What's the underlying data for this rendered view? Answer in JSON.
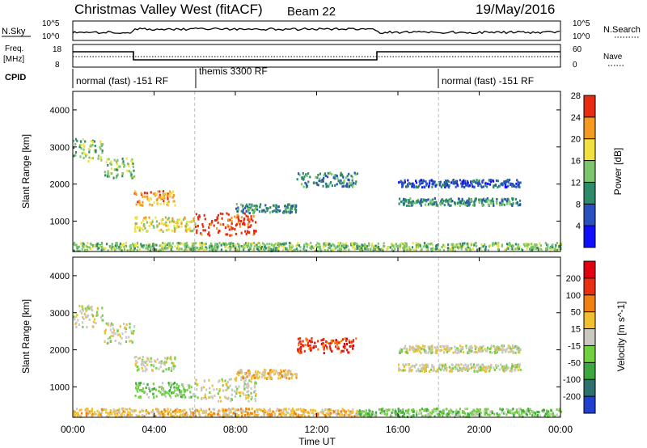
{
  "header": {
    "title": "Christmas Valley West (fitACF)",
    "beam": "Beam 22",
    "date": "19/May/2016"
  },
  "nsky_panel": {
    "label": "N.Sky",
    "ytick_top": "10^5",
    "ytick_bottom": "10^0",
    "right_label": "N.Search",
    "right_ytick_top": "10^5",
    "right_ytick_bottom": "10^0"
  },
  "freq_panel": {
    "label_line1": "Freq.",
    "label_line2": "[MHz]",
    "ytick_top": "18",
    "ytick_bottom": "8",
    "right_label": "Nave",
    "right_ytick_top": "60",
    "right_ytick_bottom": "0"
  },
  "cpid": {
    "label": "CPID",
    "segments": [
      "normal (fast) -151 RF",
      "themis 3300 RF",
      "normal (fast) -151 RF"
    ]
  },
  "chart_data": [
    {
      "type": "heatmap",
      "title": "",
      "ylabel": "Slant Range [km]",
      "xlabel": "Time UT",
      "ylim": [
        180,
        4500
      ],
      "yticks": [
        1000,
        2000,
        3000,
        4000
      ],
      "colorbar_label": "Power [dB]",
      "colorbar_ticks": [
        "4",
        "8",
        "12",
        "16",
        "20",
        "24",
        "28"
      ],
      "colorbar_colors": [
        "#1010ff",
        "#2a4fbe",
        "#2e8b6a",
        "#7cc56c",
        "#f0e040",
        "#f59a20",
        "#e82a10"
      ],
      "scatter_bands": [
        {
          "t0": 0.0,
          "t1": 1.5,
          "r0": 2600,
          "r1": 3200,
          "level": 3
        },
        {
          "t0": 1.5,
          "t1": 3.0,
          "r0": 2150,
          "r1": 2700,
          "level": 3
        },
        {
          "t0": 3.0,
          "t1": 5.0,
          "r0": 1400,
          "r1": 1800,
          "level": 5
        },
        {
          "t0": 3.0,
          "t1": 6.0,
          "r0": 700,
          "r1": 1100,
          "level": 4
        },
        {
          "t0": 6.0,
          "t1": 9.0,
          "r0": 600,
          "r1": 1200,
          "level": 6
        },
        {
          "t0": 8.0,
          "t1": 11.0,
          "r0": 1200,
          "r1": 1450,
          "level": 2
        },
        {
          "t0": 11.0,
          "t1": 14.0,
          "r0": 1900,
          "r1": 2300,
          "level": 2
        },
        {
          "t0": 16.0,
          "t1": 22.0,
          "r0": 1400,
          "r1": 1600,
          "level": 2
        },
        {
          "t0": 16.0,
          "t1": 22.0,
          "r0": 1900,
          "r1": 2100,
          "level": 1
        },
        {
          "t0": 0.0,
          "t1": 24.0,
          "r0": 180,
          "r1": 400,
          "level": 3
        }
      ]
    },
    {
      "type": "heatmap",
      "title": "",
      "ylabel": "Slant Range [km]",
      "xlabel": "Time UT",
      "ylim": [
        180,
        4500
      ],
      "yticks": [
        1000,
        2000,
        3000,
        4000
      ],
      "xticks": [
        "00:00",
        "04:00",
        "08:00",
        "12:00",
        "16:00",
        "20:00",
        "00:00"
      ],
      "colorbar_label": "Velocity [m s^-1]",
      "colorbar_ticks": [
        "200",
        "100",
        "50",
        "15",
        "-15",
        "-50",
        "-100",
        "-200"
      ],
      "colorbar_colors": [
        "#2040d0",
        "#2e7070",
        "#3ea840",
        "#70d040",
        "#c8c8c0",
        "#f0c030",
        "#f08010",
        "#e83010",
        "#e00010"
      ],
      "scatter_bands": [
        {
          "t0": 0.0,
          "t1": 1.5,
          "r0": 2600,
          "r1": 3200,
          "level": 4
        },
        {
          "t0": 1.5,
          "t1": 3.0,
          "r0": 2150,
          "r1": 2700,
          "level": 4
        },
        {
          "t0": 3.0,
          "t1": 5.0,
          "r0": 1400,
          "r1": 1800,
          "level": 4
        },
        {
          "t0": 3.0,
          "t1": 6.0,
          "r0": 700,
          "r1": 1100,
          "level": 3
        },
        {
          "t0": 6.0,
          "t1": 9.0,
          "r0": 600,
          "r1": 1200,
          "level": 4
        },
        {
          "t0": 8.0,
          "t1": 11.0,
          "r0": 1200,
          "r1": 1450,
          "level": 5
        },
        {
          "t0": 11.0,
          "t1": 14.0,
          "r0": 1900,
          "r1": 2300,
          "level": 7
        },
        {
          "t0": 16.0,
          "t1": 22.0,
          "r0": 1400,
          "r1": 1600,
          "level": 4
        },
        {
          "t0": 16.0,
          "t1": 22.0,
          "r0": 1900,
          "r1": 2100,
          "level": 4
        },
        {
          "t0": 14.0,
          "t1": 24.0,
          "r0": 180,
          "r1": 400,
          "level": 3
        },
        {
          "t0": 0.0,
          "t1": 14.0,
          "r0": 180,
          "r1": 400,
          "level": 5
        }
      ]
    }
  ]
}
